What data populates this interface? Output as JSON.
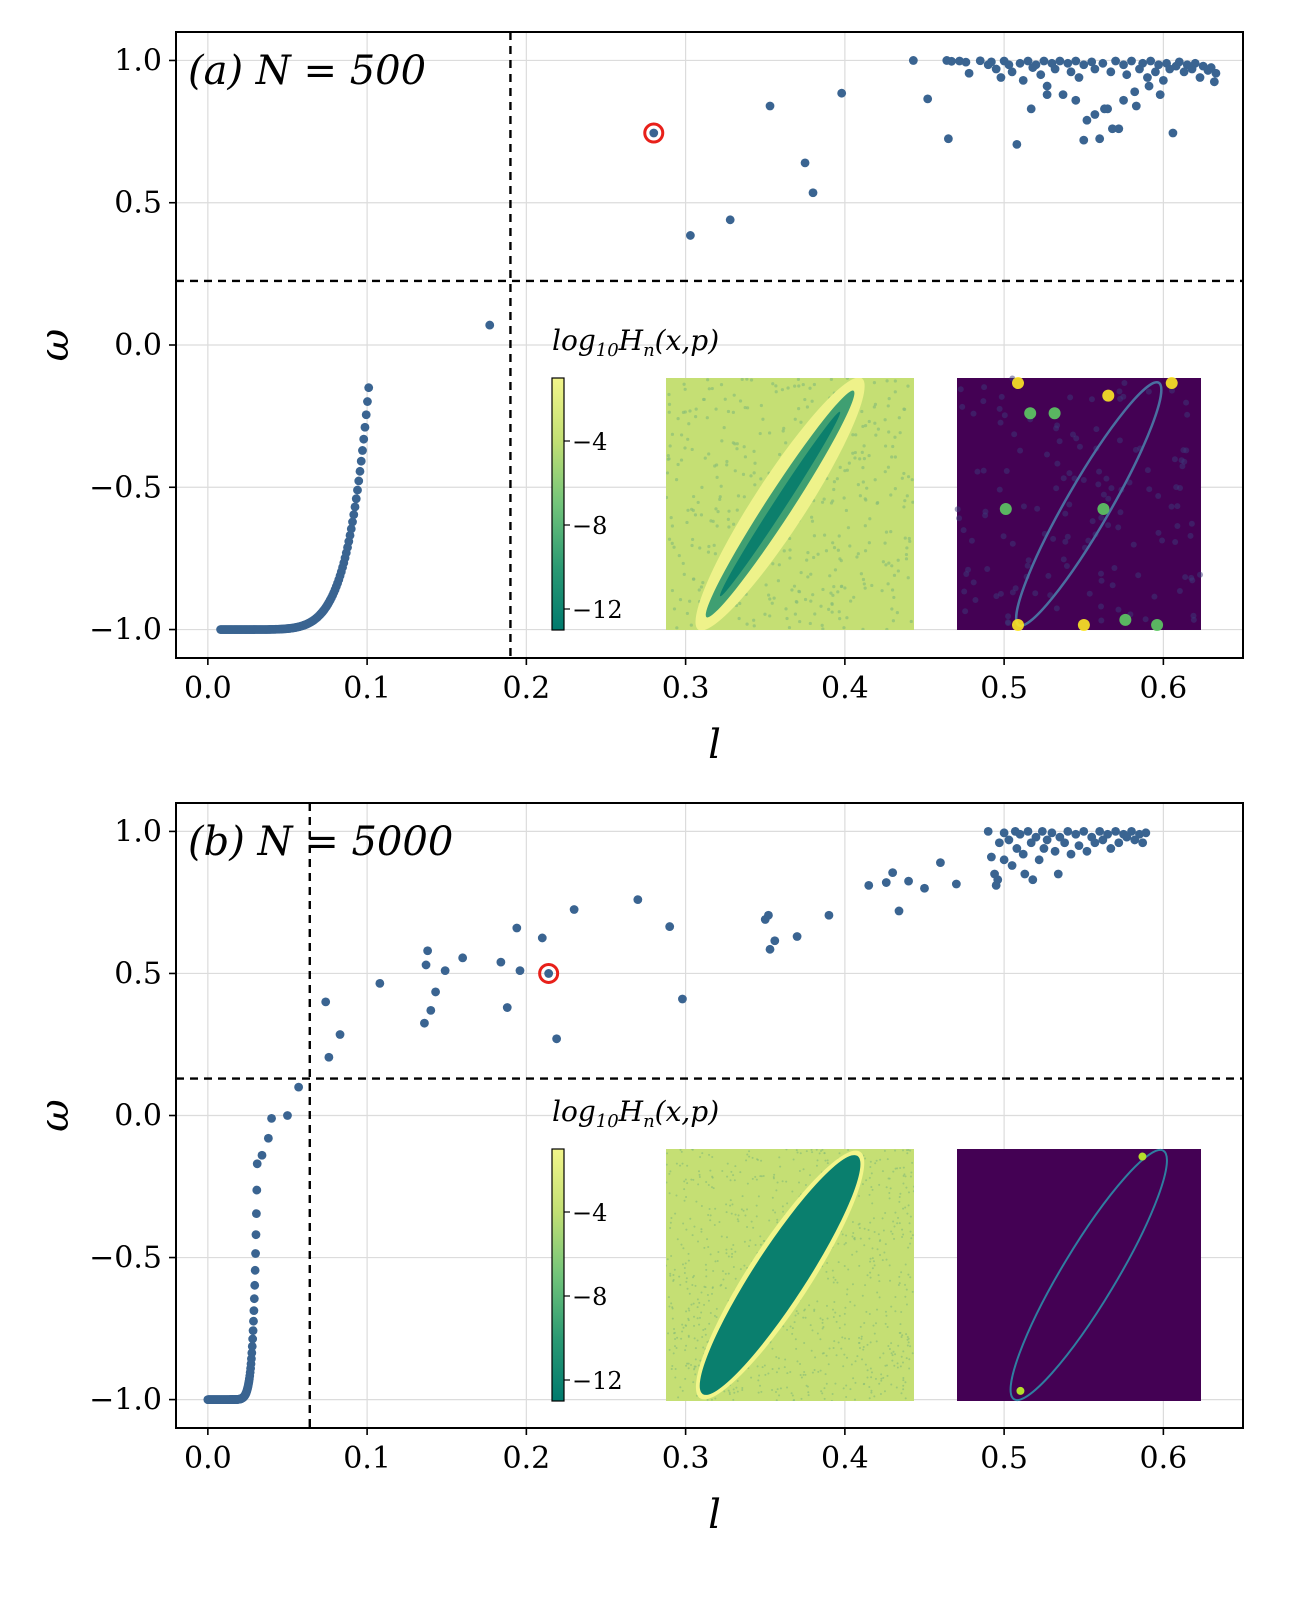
{
  "chart_data": [
    {
      "type": "scatter",
      "panel": "(a)",
      "title_tex": "N = 500",
      "xlabel": "l",
      "ylabel": "ω",
      "xlim": [
        -0.02,
        0.65
      ],
      "ylim": [
        -1.1,
        1.1
      ],
      "xticks": [
        "0.0",
        "0.1",
        "0.2",
        "0.3",
        "0.4",
        "0.5",
        "0.6"
      ],
      "xtick_values": [
        0.0,
        0.1,
        0.2,
        0.3,
        0.4,
        0.5,
        0.6
      ],
      "yticks": [
        "1.0",
        "0.5",
        "0.0",
        "−0.5",
        "−1.0"
      ],
      "ytick_values": [
        1.0,
        0.5,
        0.0,
        -0.5,
        -1.0
      ],
      "grid": true,
      "vline_x": 0.19,
      "hline_y": 0.225,
      "highlight": {
        "x": 0.28,
        "y": 0.745
      },
      "color": "#3a6491",
      "highlight_color": "#e8201a",
      "curve": {
        "x_start": 0.008,
        "x_end": 0.101,
        "count": 120,
        "y_floor": -1.0,
        "y_end": -0.15
      },
      "points": [
        [
          0.177,
          0.07
        ],
        [
          0.303,
          0.385
        ],
        [
          0.328,
          0.44
        ],
        [
          0.353,
          0.84
        ],
        [
          0.375,
          0.64
        ],
        [
          0.38,
          0.535
        ],
        [
          0.398,
          0.885
        ],
        [
          0.443,
          1.0
        ],
        [
          0.452,
          0.865
        ],
        [
          0.464,
          1.0
        ],
        [
          0.467,
          0.997
        ],
        [
          0.472,
          0.998
        ],
        [
          0.476,
          0.994
        ],
        [
          0.465,
          0.725
        ],
        [
          0.478,
          0.955
        ],
        [
          0.485,
          0.999
        ],
        [
          0.49,
          0.985
        ],
        [
          0.492,
          0.995
        ],
        [
          0.495,
          0.97
        ],
        [
          0.498,
          0.94
        ],
        [
          0.5,
          0.998
        ],
        [
          0.503,
          0.985
        ],
        [
          0.505,
          0.96
        ],
        [
          0.508,
          0.705
        ],
        [
          0.51,
          0.99
        ],
        [
          0.512,
          0.93
        ],
        [
          0.515,
          0.998
        ],
        [
          0.518,
          0.975
        ],
        [
          0.52,
          0.985
        ],
        [
          0.523,
          0.95
        ],
        [
          0.525,
          0.998
        ],
        [
          0.527,
          0.91
        ],
        [
          0.53,
          0.99
        ],
        [
          0.532,
          0.97
        ],
        [
          0.535,
          0.998
        ],
        [
          0.537,
          0.88
        ],
        [
          0.54,
          0.99
        ],
        [
          0.542,
          0.96
        ],
        [
          0.545,
          0.998
        ],
        [
          0.547,
          0.94
        ],
        [
          0.55,
          0.985
        ],
        [
          0.552,
          0.79
        ],
        [
          0.555,
          0.995
        ],
        [
          0.557,
          0.97
        ],
        [
          0.56,
          0.725
        ],
        [
          0.562,
          0.99
        ],
        [
          0.565,
          0.83
        ],
        [
          0.567,
          0.96
        ],
        [
          0.57,
          0.998
        ],
        [
          0.572,
          0.76
        ],
        [
          0.575,
          0.985
        ],
        [
          0.577,
          0.95
        ],
        [
          0.58,
          0.998
        ],
        [
          0.582,
          0.89
        ],
        [
          0.585,
          0.97
        ],
        [
          0.587,
          0.99
        ],
        [
          0.59,
          0.94
        ],
        [
          0.592,
          0.998
        ],
        [
          0.595,
          0.96
        ],
        [
          0.597,
          0.985
        ],
        [
          0.6,
          0.93
        ],
        [
          0.602,
          0.99
        ],
        [
          0.604,
          0.97
        ],
        [
          0.606,
          0.745
        ],
        [
          0.608,
          0.98
        ],
        [
          0.61,
          0.995
        ],
        [
          0.613,
          0.96
        ],
        [
          0.615,
          0.985
        ],
        [
          0.618,
          0.97
        ],
        [
          0.62,
          0.99
        ],
        [
          0.623,
          0.94
        ],
        [
          0.625,
          0.98
        ],
        [
          0.628,
          0.965
        ],
        [
          0.63,
          0.975
        ],
        [
          0.632,
          0.925
        ],
        [
          0.633,
          0.955
        ],
        [
          0.517,
          0.83
        ],
        [
          0.527,
          0.88
        ],
        [
          0.545,
          0.86
        ],
        [
          0.55,
          0.72
        ],
        [
          0.557,
          0.81
        ],
        [
          0.563,
          0.83
        ],
        [
          0.568,
          0.76
        ],
        [
          0.575,
          0.86
        ],
        [
          0.583,
          0.84
        ],
        [
          0.591,
          0.91
        ],
        [
          0.598,
          0.88
        ]
      ],
      "inset": {
        "colorbar_title": "log10Hn(x,p)",
        "colorbar_ticks": [
          "−4",
          "−8",
          "−12"
        ],
        "colorbar_tick_values": [
          -4,
          -8,
          -12
        ],
        "colorbar_range": [
          -13,
          -1
        ],
        "colormap_left": [
          "#007a6e",
          "#2b9a73",
          "#72c47a",
          "#c2df74",
          "#f2f58a"
        ],
        "colormap_right": [
          "#440154",
          "#3b528b",
          "#21908d",
          "#5dc963",
          "#fde725"
        ]
      }
    },
    {
      "type": "scatter",
      "panel": "(b)",
      "title_tex": "N = 5000",
      "xlabel": "l",
      "ylabel": "ω",
      "xlim": [
        -0.02,
        0.65
      ],
      "ylim": [
        -1.1,
        1.1
      ],
      "xticks": [
        "0.0",
        "0.1",
        "0.2",
        "0.3",
        "0.4",
        "0.5",
        "0.6"
      ],
      "xtick_values": [
        0.0,
        0.1,
        0.2,
        0.3,
        0.4,
        0.5,
        0.6
      ],
      "yticks": [
        "1.0",
        "0.5",
        "0.0",
        "−0.5",
        "−1.0"
      ],
      "ytick_values": [
        1.0,
        0.5,
        0.0,
        -0.5,
        -1.0
      ],
      "grid": true,
      "vline_x": 0.064,
      "hline_y": 0.13,
      "highlight": {
        "x": 0.214,
        "y": 0.5
      },
      "color": "#3a6491",
      "highlight_color": "#e8201a",
      "curve": {
        "x_start": 0.0,
        "x_end": 0.031,
        "count": 120,
        "y_floor": -1.0,
        "y_end": -0.17
      },
      "points": [
        [
          0.034,
          -0.14
        ],
        [
          0.038,
          -0.08
        ],
        [
          0.04,
          -0.01
        ],
        [
          0.05,
          0.0
        ],
        [
          0.057,
          0.1
        ],
        [
          0.074,
          0.4
        ],
        [
          0.076,
          0.205
        ],
        [
          0.083,
          0.285
        ],
        [
          0.108,
          0.465
        ],
        [
          0.136,
          0.325
        ],
        [
          0.137,
          0.53
        ],
        [
          0.138,
          0.58
        ],
        [
          0.14,
          0.37
        ],
        [
          0.143,
          0.435
        ],
        [
          0.149,
          0.51
        ],
        [
          0.16,
          0.555
        ],
        [
          0.184,
          0.54
        ],
        [
          0.188,
          0.38
        ],
        [
          0.194,
          0.66
        ],
        [
          0.196,
          0.51
        ],
        [
          0.21,
          0.625
        ],
        [
          0.219,
          0.27
        ],
        [
          0.23,
          0.725
        ],
        [
          0.27,
          0.76
        ],
        [
          0.29,
          0.665
        ],
        [
          0.298,
          0.41
        ],
        [
          0.35,
          0.69
        ],
        [
          0.352,
          0.705
        ],
        [
          0.353,
          0.585
        ],
        [
          0.356,
          0.615
        ],
        [
          0.37,
          0.63
        ],
        [
          0.39,
          0.705
        ],
        [
          0.415,
          0.81
        ],
        [
          0.426,
          0.82
        ],
        [
          0.43,
          0.855
        ],
        [
          0.434,
          0.72
        ],
        [
          0.44,
          0.825
        ],
        [
          0.45,
          0.8
        ],
        [
          0.46,
          0.89
        ],
        [
          0.47,
          0.815
        ],
        [
          0.49,
          1.0
        ],
        [
          0.492,
          0.91
        ],
        [
          0.494,
          0.85
        ],
        [
          0.495,
          0.81
        ],
        [
          0.496,
          0.83
        ],
        [
          0.497,
          0.96
        ],
        [
          0.5,
          0.9
        ],
        [
          0.5,
          0.995
        ],
        [
          0.503,
          0.97
        ],
        [
          0.505,
          0.88
        ],
        [
          0.507,
          1.0
        ],
        [
          0.508,
          0.94
        ],
        [
          0.51,
          0.99
        ],
        [
          0.512,
          0.92
        ],
        [
          0.513,
          0.85
        ],
        [
          0.515,
          1.0
        ],
        [
          0.517,
          0.96
        ],
        [
          0.518,
          0.83
        ],
        [
          0.52,
          0.98
        ],
        [
          0.522,
          0.9
        ],
        [
          0.524,
          1.0
        ],
        [
          0.525,
          0.94
        ],
        [
          0.527,
          0.97
        ],
        [
          0.53,
          0.995
        ],
        [
          0.532,
          0.93
        ],
        [
          0.534,
          0.85
        ],
        [
          0.535,
          0.98
        ],
        [
          0.538,
          0.96
        ],
        [
          0.54,
          1.0
        ],
        [
          0.542,
          0.92
        ],
        [
          0.545,
          0.99
        ],
        [
          0.547,
          0.95
        ],
        [
          0.55,
          1.0
        ],
        [
          0.552,
          0.93
        ],
        [
          0.555,
          0.98
        ],
        [
          0.557,
          0.96
        ],
        [
          0.56,
          1.0
        ],
        [
          0.562,
          0.97
        ],
        [
          0.565,
          0.99
        ],
        [
          0.567,
          0.94
        ],
        [
          0.57,
          1.0
        ],
        [
          0.572,
          0.96
        ],
        [
          0.575,
          0.99
        ],
        [
          0.577,
          0.98
        ],
        [
          0.58,
          1.0
        ],
        [
          0.582,
          0.97
        ],
        [
          0.585,
          0.99
        ],
        [
          0.587,
          0.96
        ],
        [
          0.589,
          0.995
        ]
      ],
      "inset": {
        "colorbar_title": "log10Hn(x,p)",
        "colorbar_ticks": [
          "−4",
          "−8",
          "−12"
        ],
        "colorbar_tick_values": [
          -4,
          -8,
          -12
        ],
        "colorbar_range": [
          -13,
          -1
        ],
        "colormap_left": [
          "#007a6e",
          "#2b9a73",
          "#72c47a",
          "#c2df74",
          "#f2f58a"
        ],
        "colormap_right": [
          "#440154",
          "#3b528b",
          "#21908d",
          "#5dc963",
          "#fde725"
        ]
      }
    }
  ]
}
